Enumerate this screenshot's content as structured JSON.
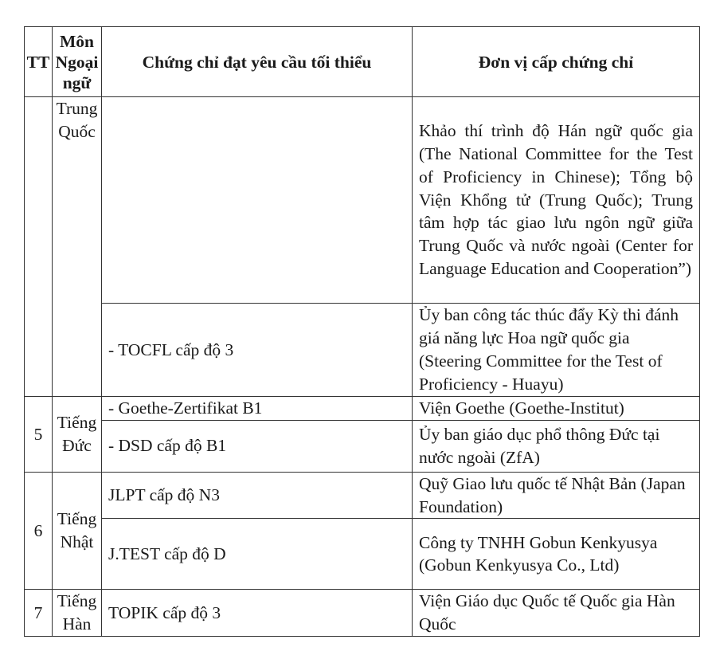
{
  "headers": {
    "tt": "TT",
    "subject": "Môn Ngoại ngữ",
    "certificate": "Chứng chỉ đạt yêu cầu tối thiểu",
    "issuer": "Đơn vị cấp chứng chỉ"
  },
  "groups": [
    {
      "tt": "",
      "subject": "Trung Quốc",
      "rows": [
        {
          "certificate": "",
          "issuer": "Khảo thí trình độ Hán ngữ quốc gia (The National Committee for the Test of Proficiency in Chinese); Tổng bộ Viện Khổng tử (Trung Quốc); Trung tâm hợp tác giao lưu ngôn ngữ giữa Trung Quốc và nước ngoài (Center for Language Education and Cooperation”)"
        },
        {
          "certificate": "- TOCFL cấp độ 3",
          "issuer": "Ủy ban công tác thúc đẩy Kỳ thi đánh giá năng lực Hoa ngữ quốc gia (Steering Committee for the Test of Proficiency - Huayu)"
        }
      ]
    },
    {
      "tt": "5",
      "subject": "Tiếng Đức",
      "rows": [
        {
          "certificate": "- Goethe-Zertifikat B1",
          "issuer": "Viện Goethe (Goethe-Institut)"
        },
        {
          "certificate": "- DSD cấp độ B1",
          "issuer": "Ủy ban giáo dục phổ thông Đức tại nước ngoài (ZfA)"
        }
      ]
    },
    {
      "tt": "6",
      "subject": "Tiếng Nhật",
      "rows": [
        {
          "certificate": "JLPT cấp độ N3",
          "issuer": "Quỹ Giao lưu quốc tế Nhật Bản (Japan Foundation)"
        },
        {
          "certificate": "J.TEST cấp độ D",
          "issuer": "Công ty TNHH Gobun Kenkyusya (Gobun Kenkyusya Co., Ltd)"
        }
      ]
    },
    {
      "tt": "7",
      "subject": "Tiếng Hàn",
      "rows": [
        {
          "certificate": "TOPIK cấp độ 3",
          "issuer": "Viện Giáo dục Quốc tế Quốc gia Hàn Quốc"
        }
      ]
    }
  ]
}
